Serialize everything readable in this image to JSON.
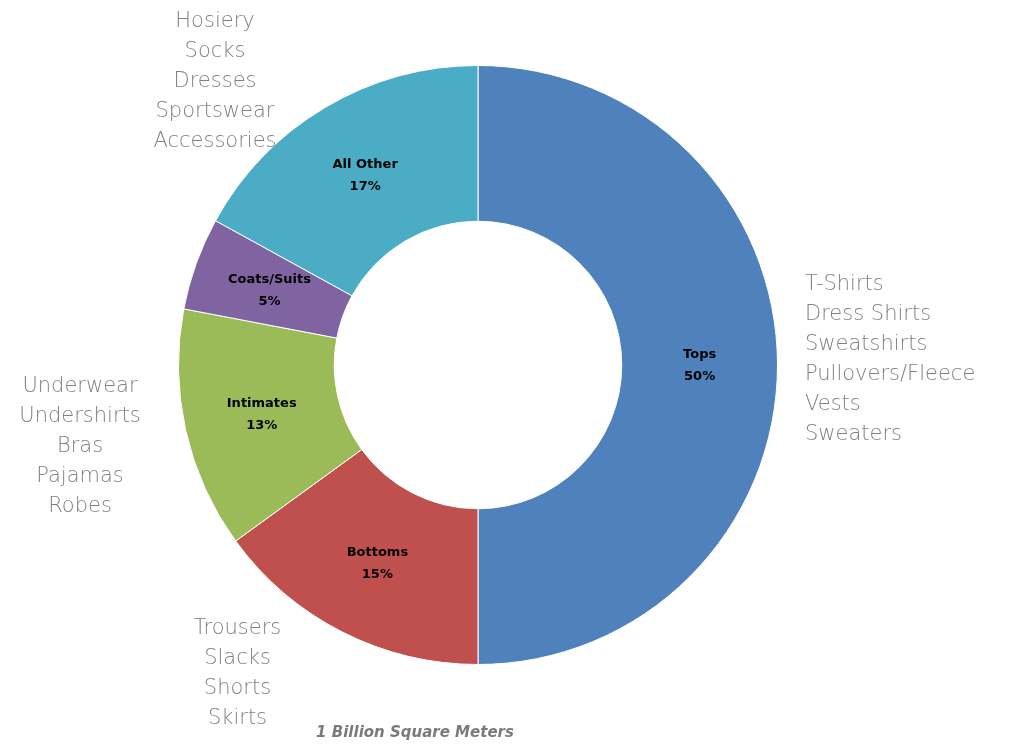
{
  "chart_data": {
    "type": "donut",
    "categories": [
      "Tops",
      "Bottoms",
      "Intimates",
      "Coats/Suits",
      "All Other"
    ],
    "values": [
      50,
      15,
      13,
      5,
      17
    ],
    "value_labels": [
      "50%",
      "15%",
      "13%",
      "5%",
      "17%"
    ],
    "colors": [
      "#4f81bd",
      "#c0504d",
      "#9bbb59",
      "#8064a2",
      "#4bacc6"
    ],
    "legend": false,
    "annotations": [
      "Hosiery\nSocks\nDresses\nSportswear\nAccessories",
      "T-Shirts\nDress Shirts\nSweatshirts\nPullovers/Fleece\nVests\nSweaters",
      "Underwear\nUndershirts\nBras\nPajamas\nRobes",
      "Trousers\nSlacks\nShorts\nSkirts",
      "1 Billion Square Meters"
    ]
  }
}
